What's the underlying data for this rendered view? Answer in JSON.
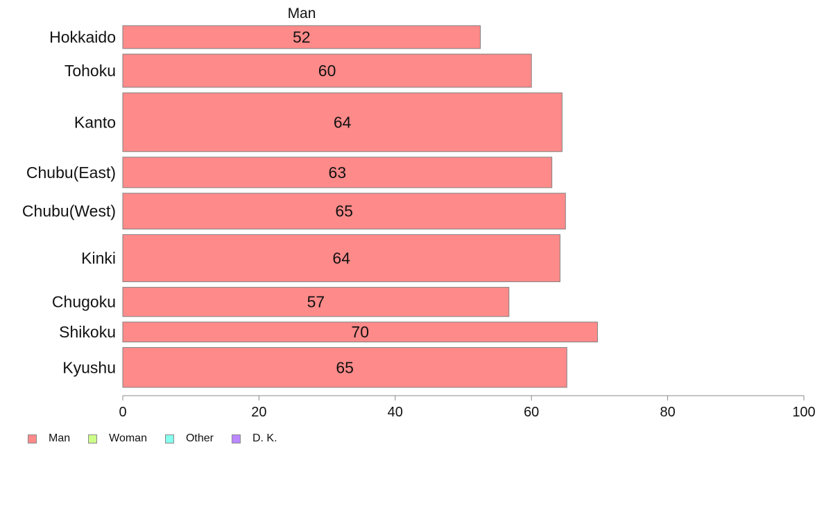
{
  "chart_data": {
    "type": "bar",
    "orientation": "horizontal",
    "title": "Man",
    "categories": [
      "Hokkaido",
      "Tohoku",
      "Kanto",
      "Chubu(East)",
      "Chubu(West)",
      "Kinki",
      "Chugoku",
      "Shikoku",
      "Kyushu"
    ],
    "values": [
      52.5,
      60,
      64.5,
      63,
      65,
      64.2,
      56.7,
      69.7,
      65.2
    ],
    "value_labels": [
      "52",
      "60",
      "64",
      "63",
      "65",
      "64",
      "57",
      "70",
      "65"
    ],
    "relative_sample_sizes": [
      0.69,
      1.0,
      1.77,
      0.92,
      1.08,
      1.42,
      0.88,
      0.6,
      1.2
    ],
    "xlim": [
      0,
      100
    ],
    "xticks": [
      "0",
      "20",
      "40",
      "60",
      "80",
      "100"
    ],
    "bar_color": "#ff8a8a",
    "bar_border": "#808080",
    "grid": false,
    "legend_position": "bottom-left",
    "legend": [
      {
        "label": "Man",
        "color": "#ff8a8a"
      },
      {
        "label": "Woman",
        "color": "#ccff88"
      },
      {
        "label": "Other",
        "color": "#88ffee"
      },
      {
        "label": "D. K.",
        "color": "#bb88ff"
      }
    ]
  }
}
